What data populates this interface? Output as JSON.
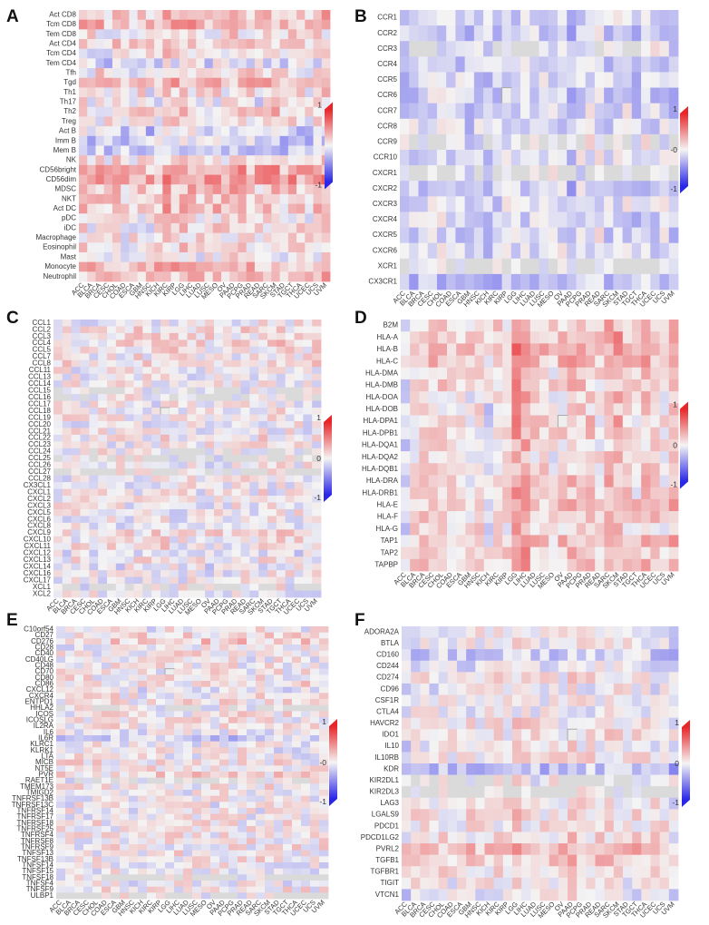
{
  "colors": {
    "positive": "#e8262a",
    "negative": "#2a26e8",
    "neutral": "#f4f4f4",
    "nan": "#dadada"
  },
  "scale_labels": {
    "top": "1",
    "bottom": "-1",
    "mid_A": "",
    "mid_B": "-0",
    "mid_C": "0",
    "mid_D": "0",
    "mid_E": "-0",
    "mid_F": "0"
  },
  "cancer_types": [
    "ACC",
    "BLCA",
    "BRCA",
    "CESC",
    "CHOL",
    "COAD",
    "ESCA",
    "GBM",
    "HNSC",
    "KICH",
    "KIRC",
    "KIRP",
    "LGG",
    "LIHC",
    "LUAD",
    "LUSC",
    "MESO",
    "OV",
    "PAAD",
    "PCPG",
    "PRAD",
    "READ",
    "SARC",
    "SKCM",
    "STAD",
    "TGCT",
    "THCA",
    "UCEC",
    "UCS",
    "UVM"
  ],
  "chart_data": [
    {
      "type": "heatmap",
      "panel": "A",
      "zlim": [
        -1,
        1
      ],
      "rows": [
        "Act CD8",
        "Tcm CD8",
        "Tem CD8",
        "Act CD4",
        "Tcm CD4",
        "Tem CD4",
        "Tfh",
        "Tgd",
        "Th1",
        "Th17",
        "Th2",
        "Treg",
        "Act B",
        "Imm B",
        "Mem B",
        "NK",
        "CD56bright",
        "CD56dim",
        "MDSC",
        "NKT",
        "Act DC",
        "pDC",
        "iDC",
        "Macrophage",
        "Eosinophil",
        "Mast",
        "Monocyte",
        "Neutrophil"
      ],
      "row_bias": [
        0.25,
        0.3,
        0.05,
        0.15,
        0.05,
        -0.15,
        0.1,
        0.25,
        0.05,
        -0.05,
        0.15,
        0.05,
        -0.2,
        -0.2,
        -0.2,
        0.05,
        0.35,
        0.4,
        0.2,
        0.15,
        0.2,
        0.05,
        0.05,
        0.05,
        0.05,
        0.0,
        0.3,
        0.2
      ],
      "col_bias": [
        0.1,
        0,
        0,
        -0.05,
        0.05,
        -0.1,
        -0.05,
        0,
        -0.05,
        0.05,
        0.15,
        0.1,
        0.15,
        0.1,
        0,
        0,
        0.05,
        0.05,
        0.1,
        0.1,
        0,
        0,
        0.05,
        0.1,
        0,
        0.05,
        0.05,
        0,
        0.1,
        0.1
      ],
      "noise": 0.3,
      "seed": 11,
      "nan_cells": []
    },
    {
      "type": "heatmap",
      "panel": "B",
      "zlim": [
        -1,
        1
      ],
      "rows": [
        "CCR1",
        "CCR2",
        "CCR3",
        "CCR4",
        "CCR5",
        "CCR6",
        "CCR7",
        "CCR8",
        "CCR9",
        "CCR10",
        "CXCR1",
        "CXCR2",
        "CXCR3",
        "CXCR4",
        "CXCR5",
        "CXCR6",
        "XCR1",
        "CX3CR1"
      ],
      "row_bias": [
        -0.1,
        -0.15,
        0.0,
        -0.15,
        -0.1,
        -0.15,
        -0.1,
        -0.1,
        0.0,
        -0.05,
        -0.05,
        -0.15,
        -0.1,
        -0.1,
        -0.1,
        -0.1,
        -0.05,
        -0.25
      ],
      "col_bias": [
        -0.1,
        -0.05,
        -0.05,
        0,
        0,
        -0.05,
        -0.05,
        -0.1,
        -0.05,
        -0.1,
        -0.05,
        0,
        -0.05,
        0,
        -0.05,
        -0.05,
        0,
        0,
        -0.2,
        0,
        0.05,
        0.05,
        -0.05,
        0,
        0,
        -0.1,
        0,
        -0.05,
        0,
        -0.1
      ],
      "noise": 0.25,
      "seed": 23,
      "gray_rows": [
        2,
        8,
        10,
        16
      ],
      "nan_cells": [
        [
          5,
          11
        ]
      ]
    },
    {
      "type": "heatmap",
      "panel": "C",
      "zlim": [
        -1,
        1
      ],
      "rows": [
        "CCL1",
        "CCL2",
        "CCL3",
        "CCL4",
        "CCL5",
        "CCL7",
        "CCL8",
        "CCL11",
        "CCL13",
        "CCL14",
        "CCL15",
        "CCL16",
        "CCL17",
        "CCL18",
        "CCL19",
        "CCL20",
        "CCL21",
        "CCL22",
        "CCL23",
        "CCL24",
        "CCL25",
        "CCL26",
        "CCL27",
        "CCL28",
        "CX3CL1",
        "CXCL1",
        "CXCL2",
        "CXCL3",
        "CXCL5",
        "CXCL6",
        "CXCL8",
        "CXCL9",
        "CXCL10",
        "CXCL11",
        "CXCL12",
        "CXCL13",
        "CXCL14",
        "CXCL16",
        "CXCL17",
        "XCL1",
        "XCL2"
      ],
      "row_bias": [
        0,
        0.1,
        0.1,
        0.1,
        0.1,
        0.05,
        0.1,
        0,
        0,
        0,
        0,
        0,
        0,
        0.05,
        0.05,
        0,
        0,
        0.05,
        0,
        0,
        0,
        0,
        0,
        0,
        0,
        0,
        0,
        0,
        0,
        0,
        0,
        0.1,
        0.05,
        0.05,
        -0.05,
        0.05,
        -0.05,
        0,
        0,
        0,
        0
      ],
      "col_bias": [
        0,
        0,
        0,
        0,
        0,
        0,
        0,
        0,
        0,
        0,
        0,
        0,
        0.05,
        0,
        0,
        0,
        0,
        0,
        0,
        0,
        0,
        0,
        0,
        0.05,
        0,
        0.05,
        0,
        0,
        0,
        0
      ],
      "noise": 0.28,
      "seed": 37,
      "gray_rows": [
        10,
        11,
        19,
        20,
        22,
        39
      ],
      "nan_cells": [
        [
          13,
          12
        ]
      ]
    },
    {
      "type": "heatmap",
      "panel": "D",
      "zlim": [
        -1,
        1
      ],
      "rows": [
        "B2M",
        "HLA-A",
        "HLA-B",
        "HLA-C",
        "HLA-DMA",
        "HLA-DMB",
        "HLA-DOA",
        "HLA-DOB",
        "HLA-DPA1",
        "HLA-DPB1",
        "HLA-DQA1",
        "HLA-DQA2",
        "HLA-DQB1",
        "HLA-DRA",
        "HLA-DRB1",
        "HLA-E",
        "HLA-F",
        "HLA-G",
        "TAP1",
        "TAP2",
        "TAPBP"
      ],
      "row_bias": [
        0.15,
        0.25,
        0.25,
        0.25,
        0.1,
        0.1,
        0.05,
        0.05,
        0.1,
        0.1,
        0.05,
        0.05,
        0.05,
        0.1,
        0.1,
        0.2,
        0.15,
        0.1,
        0.2,
        0.15,
        0.15
      ],
      "col_bias": [
        -0.25,
        0.05,
        0.05,
        0.1,
        0.1,
        0,
        0,
        -0.05,
        0,
        -0.15,
        0.05,
        0,
        0.35,
        0.3,
        0.1,
        0.05,
        0,
        0.05,
        0.15,
        0.1,
        0.1,
        0,
        0.2,
        0.25,
        0.05,
        0,
        0.15,
        0.05,
        0,
        0.15
      ],
      "noise": 0.25,
      "seed": 53,
      "nan_cells": [
        [
          8,
          17
        ]
      ]
    },
    {
      "type": "heatmap",
      "panel": "E",
      "zlim": [
        -1,
        1
      ],
      "rows": [
        "C10orf54",
        "CD27",
        "CD276",
        "CD28",
        "CD40",
        "CD40LG",
        "CD48",
        "CD70",
        "CD80",
        "CD86",
        "CXCL12",
        "CXCR4",
        "ENTPD1",
        "HHLA2",
        "ICOS",
        "ICOSLG",
        "IL2RA",
        "IL6",
        "IL6R",
        "KLRC1",
        "KLRK1",
        "LTA",
        "MICB",
        "NT5E",
        "PVR",
        "RAET1E",
        "TMEM173",
        "TMIGD2",
        "TNFRSF13B",
        "TNFRSF13C",
        "TNFRSF14",
        "TNFRSF17",
        "TNFRSF18",
        "TNFRSF25",
        "TNFRSF4",
        "TNFRSF8",
        "TNFRSF9",
        "TNFSF13",
        "TNFSF13B",
        "TNFSF14",
        "TNFSF15",
        "TNFSF18",
        "TNFSF4",
        "TNFSF9",
        "ULBP1"
      ],
      "row_bias": [
        0,
        0.1,
        0.2,
        0,
        0.05,
        0,
        0.05,
        0.05,
        0.05,
        0.1,
        -0.05,
        0.05,
        0.05,
        0,
        0.05,
        0.05,
        0.05,
        0,
        -0.2,
        0,
        0,
        0,
        0.05,
        0.1,
        0.15,
        0,
        0.05,
        0,
        0,
        0,
        0,
        0,
        0.05,
        0,
        0.05,
        0.05,
        0.05,
        0.05,
        0.05,
        0,
        0,
        0,
        0,
        0.05,
        0
      ],
      "col_bias": [
        0,
        0,
        0,
        0,
        0,
        0,
        0,
        0,
        0,
        0,
        0,
        0,
        0,
        0,
        0,
        0,
        0,
        0,
        0,
        0,
        0,
        0,
        0,
        0,
        0,
        0,
        0,
        0,
        0,
        0
      ],
      "noise": 0.28,
      "seed": 71,
      "gray_rows": [
        13,
        25,
        41,
        44
      ],
      "nan_cells": [
        [
          7,
          12
        ]
      ]
    },
    {
      "type": "heatmap",
      "panel": "F",
      "zlim": [
        -1,
        1
      ],
      "rows": [
        "ADORA2A",
        "BTLA",
        "CD160",
        "CD244",
        "CD274",
        "CD96",
        "CSF1R",
        "CTLA4",
        "HAVCR2",
        "IDO1",
        "IL10",
        "IL10RB",
        "KDR",
        "KIR2DL1",
        "KIR2DL3",
        "LAG3",
        "LGALS9",
        "PDCD1",
        "PDCD1LG2",
        "PVRL2",
        "TGFB1",
        "TGFBR1",
        "TIGIT",
        "VTCN1"
      ],
      "row_bias": [
        0.05,
        0,
        -0.2,
        -0.1,
        0.05,
        -0.05,
        0,
        -0.05,
        0.05,
        0.05,
        0,
        0.05,
        -0.3,
        0,
        0,
        0.05,
        0.1,
        0.05,
        0.1,
        0.3,
        0.2,
        0.1,
        0,
        -0.05
      ],
      "col_bias": [
        -0.1,
        0,
        0,
        0,
        0,
        0,
        0,
        0,
        0,
        0,
        0,
        0,
        0.1,
        0.05,
        0,
        0,
        0,
        0,
        0.1,
        0.05,
        0.05,
        0.05,
        0.05,
        0.05,
        0,
        0,
        0.05,
        0,
        0,
        -0.1
      ],
      "noise": 0.25,
      "seed": 97,
      "gray_rows": [
        13,
        14
      ],
      "nan_cells": [
        [
          9,
          18
        ]
      ]
    }
  ]
}
